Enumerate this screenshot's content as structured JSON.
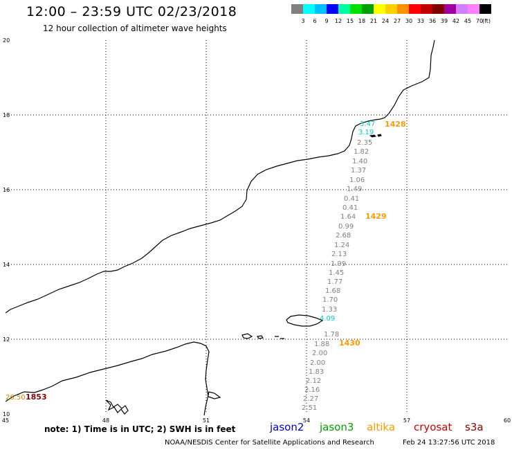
{
  "header": {
    "title": "12:00 – 23:59 UTC 02/23/2018",
    "subtitle": "12 hour collection of altimeter wave heights"
  },
  "scale": {
    "colors": [
      "#808080",
      "#00ffff",
      "#00bfff",
      "#0000ff",
      "#00ffa0",
      "#00e000",
      "#00a000",
      "#ffff00",
      "#ffd000",
      "#ff9000",
      "#ff0000",
      "#c00000",
      "#800000",
      "#a000a0",
      "#d080ff",
      "#ff80ff",
      "#000000"
    ],
    "labels": [
      "3",
      "6",
      "9",
      "12",
      "15",
      "18",
      "21",
      "24",
      "27",
      "30",
      "33",
      "36",
      "39",
      "42",
      "45",
      "70"
    ],
    "unit": "(ft)"
  },
  "axes": {
    "x_ticks": [
      "45",
      "48",
      "51",
      "54",
      "57",
      "60"
    ],
    "y_ticks": [
      "10",
      "12",
      "14",
      "16",
      "18",
      "20"
    ],
    "x_range": [
      45,
      60
    ],
    "y_range": [
      10,
      20
    ]
  },
  "passes": [
    {
      "time": "1428",
      "color": "#ff9900"
    },
    {
      "time": "1429",
      "color": "#ff9900"
    },
    {
      "time": "1430",
      "color": "#ff9900"
    },
    {
      "time": "1853",
      "color": "#8b0000"
    }
  ],
  "observations": [
    {
      "value": "3.47",
      "color": "#00cccc"
    },
    {
      "value": "3.19",
      "color": "#00cccc"
    },
    {
      "value": "2.35",
      "color": "#808080"
    },
    {
      "value": "1.82",
      "color": "#808080"
    },
    {
      "value": "1.40",
      "color": "#808080"
    },
    {
      "value": "1.37",
      "color": "#808080"
    },
    {
      "value": "1.06",
      "color": "#808080"
    },
    {
      "value": "1.49",
      "color": "#808080"
    },
    {
      "value": "0.41",
      "color": "#808080"
    },
    {
      "value": "0.41",
      "color": "#808080"
    },
    {
      "value": "1.64",
      "color": "#808080"
    },
    {
      "value": "0.99",
      "color": "#808080"
    },
    {
      "value": "2.68",
      "color": "#808080"
    },
    {
      "value": "1.24",
      "color": "#808080"
    },
    {
      "value": "2.13",
      "color": "#808080"
    },
    {
      "value": "1.99",
      "color": "#808080"
    },
    {
      "value": "1.45",
      "color": "#808080"
    },
    {
      "value": "1.77",
      "color": "#808080"
    },
    {
      "value": "1.68",
      "color": "#808080"
    },
    {
      "value": "1.70",
      "color": "#808080"
    },
    {
      "value": "1.33",
      "color": "#808080"
    },
    {
      "value": "4.09",
      "color": "#00cccc"
    },
    {
      "value": "1.78",
      "color": "#808080"
    },
    {
      "value": "1.88",
      "color": "#808080"
    },
    {
      "value": "2.00",
      "color": "#808080"
    },
    {
      "value": "2.00",
      "color": "#808080"
    },
    {
      "value": "1.83",
      "color": "#808080"
    },
    {
      "value": "2.12",
      "color": "#808080"
    },
    {
      "value": "2.16",
      "color": "#808080"
    },
    {
      "value": "2.27",
      "color": "#808080"
    },
    {
      "value": "2.51",
      "color": "#808080"
    },
    {
      "value": "26.50",
      "color": "#cc8800"
    }
  ],
  "footer": {
    "note": "note:  1) Time is in UTC;  2) SWH is in feet",
    "satellites": [
      {
        "name": "jason2",
        "color": "#0000cc"
      },
      {
        "name": "jason3",
        "color": "#00a000"
      },
      {
        "name": "altika",
        "color": "#ff9900"
      },
      {
        "name": "cryosat",
        "color": "#cc0000"
      },
      {
        "name": "s3a",
        "color": "#8b0000"
      }
    ],
    "credit": "NOAA/NESDIS Center for Satellite Applications and Research",
    "timestamp": "Feb 24 13:27:56 UTC 2018"
  }
}
